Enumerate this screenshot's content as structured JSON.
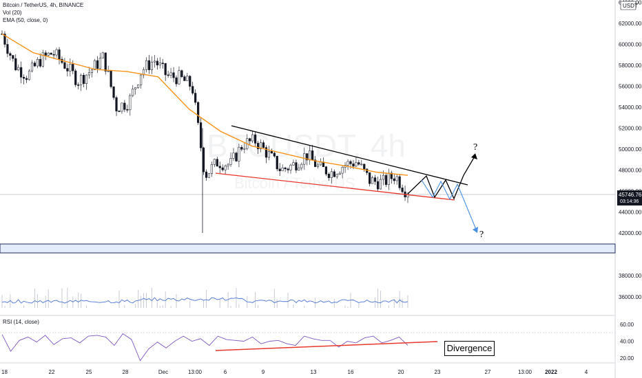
{
  "symbol_title": "Bitcoin / TetherUS, 4h, BINANCE",
  "indicators": {
    "volume_label": "Vol (20)",
    "ema_label": "EMA (50, close, 0)",
    "rsi_label": "RSI (14, close)"
  },
  "watermark": {
    "main": "BTCUSDT, 4h",
    "sub": "Bitcoin / TetherUS"
  },
  "price_axis": {
    "currency": "USDT",
    "current_price": "45746.76",
    "countdown": "03:14:36"
  },
  "annotations": {
    "divergence": "Divergence",
    "question_up": "?",
    "question_down": "?"
  },
  "colors": {
    "up_candle": "#2a2e39",
    "down_candle": "#131722",
    "ema": "#f7931a",
    "trendline_upper": "#000000",
    "trendline_lower": "#e8372c",
    "volume_line": "#5b7fd6",
    "rsi_line": "#7e57c2",
    "support_zone": "#e4ebfb",
    "projection_black": "#000000",
    "projection_blue": "#4a90e2"
  },
  "chart_data": [
    {
      "type": "candlestick",
      "title": "Bitcoin / TetherUS, 4h, BINANCE",
      "y_ticks": [
        42000,
        44000,
        46000,
        48000,
        50000,
        52000,
        54000,
        56000,
        58000,
        60000,
        62000,
        64000
      ],
      "ylim": [
        38000,
        64500
      ],
      "x_ticks": [
        "18",
        "22",
        "25",
        "28",
        "Dec",
        "13:00",
        "6",
        "9",
        "13",
        "16",
        "20",
        "23",
        "27",
        "13:00",
        "2022",
        "4"
      ],
      "close_path": [
        {
          "x": "Nov 18",
          "y": 61000
        },
        {
          "x": "Nov 19",
          "y": 58000
        },
        {
          "x": "Nov 20",
          "y": 57000
        },
        {
          "x": "Nov 21",
          "y": 58500
        },
        {
          "x": "Nov 22",
          "y": 59200
        },
        {
          "x": "Nov 23",
          "y": 58000
        },
        {
          "x": "Nov 24",
          "y": 56500
        },
        {
          "x": "Nov 25",
          "y": 57500
        },
        {
          "x": "Nov 26",
          "y": 58800
        },
        {
          "x": "Nov 27",
          "y": 54000
        },
        {
          "x": "Nov 28",
          "y": 54500
        },
        {
          "x": "Nov 29",
          "y": 57500
        },
        {
          "x": "Nov 30",
          "y": 58500
        },
        {
          "x": "Dec 1",
          "y": 57000
        },
        {
          "x": "Dec 2",
          "y": 56800
        },
        {
          "x": "Dec 3",
          "y": 56000
        },
        {
          "x": "Dec 4",
          "y": 47500
        },
        {
          "x": "Dec 5",
          "y": 48800
        },
        {
          "x": "Dec 6",
          "y": 48500
        },
        {
          "x": "Dec 7",
          "y": 50500
        },
        {
          "x": "Dec 8",
          "y": 50800
        },
        {
          "x": "Dec 9",
          "y": 49500
        },
        {
          "x": "Dec 10",
          "y": 48000
        },
        {
          "x": "Dec 11",
          "y": 48500
        },
        {
          "x": "Dec 12",
          "y": 49500
        },
        {
          "x": "Dec 13",
          "y": 48200
        },
        {
          "x": "Dec 14",
          "y": 47800
        },
        {
          "x": "Dec 15",
          "y": 48500
        },
        {
          "x": "Dec 16",
          "y": 48800
        },
        {
          "x": "Dec 17",
          "y": 47000
        },
        {
          "x": "Dec 18",
          "y": 46800
        },
        {
          "x": "Dec 19",
          "y": 47500
        },
        {
          "x": "Dec 20",
          "y": 45747
        }
      ],
      "ema50": [
        {
          "x": "Nov 18",
          "y": 61000
        },
        {
          "x": "Nov 22",
          "y": 59200
        },
        {
          "x": "Nov 25",
          "y": 58400
        },
        {
          "x": "Nov 28",
          "y": 57600
        },
        {
          "x": "Dec 1",
          "y": 57400
        },
        {
          "x": "Dec 3",
          "y": 56900
        },
        {
          "x": "Dec 5",
          "y": 53800
        },
        {
          "x": "Dec 7",
          "y": 51700
        },
        {
          "x": "Dec 9",
          "y": 50300
        },
        {
          "x": "Dec 12",
          "y": 49600
        },
        {
          "x": "Dec 14",
          "y": 48900
        },
        {
          "x": "Dec 16",
          "y": 48400
        },
        {
          "x": "Dec 18",
          "y": 47800
        },
        {
          "x": "Dec 20",
          "y": 47500
        }
      ],
      "wick_low": 42000,
      "support_zone": [
        40200,
        41000
      ]
    },
    {
      "type": "area",
      "title": "Vol (20)",
      "description_label": "Vol (20)",
      "y_ticks": [
        36000,
        38000
      ],
      "level": "flat"
    },
    {
      "type": "line",
      "title": "RSI (14, close)",
      "y_ticks": [
        20.0,
        40.0,
        60.0
      ],
      "ylim": [
        10,
        70
      ],
      "values": [
        48,
        28,
        41,
        45,
        39,
        47,
        36,
        43,
        44,
        38,
        46,
        47,
        45,
        35,
        49,
        42,
        17,
        31,
        39,
        32,
        40,
        46,
        40,
        43,
        35,
        46,
        42,
        41,
        40,
        45,
        37,
        40,
        41,
        37,
        35,
        46,
        43,
        41,
        41,
        33,
        40,
        38,
        44,
        46,
        38,
        41,
        45,
        35
      ],
      "divergence_line": {
        "from": 29,
        "to": 37
      }
    }
  ]
}
